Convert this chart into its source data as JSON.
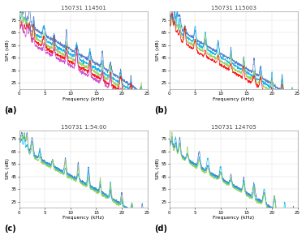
{
  "titles": [
    "150731 114501",
    "150731 115003",
    "150731 1:54:00",
    "150731 124705"
  ],
  "subplot_labels": [
    "(a)",
    "(b)",
    "(c)",
    "(d)"
  ],
  "xlabel": "Frequency (kHz)",
  "ylabel": "SPL (dB)",
  "xlim": [
    0,
    25
  ],
  "ylim": [
    20,
    82
  ],
  "yticks": [
    25,
    35,
    45,
    55,
    65,
    75
  ],
  "xticks": [
    0,
    5,
    10,
    15,
    20,
    25
  ],
  "colors_ab": [
    "#4472c4",
    "#00b0f0",
    "#92d050",
    "#ff0000",
    "#cc44cc"
  ],
  "colors_cd": [
    "#4472c4",
    "#00b0f0",
    "#92d050"
  ],
  "line_width": 0.5,
  "grid_color": "#d0d0d0",
  "grid_alpha": 0.8,
  "bg_color": "#ffffff",
  "title_fontsize": 5.0,
  "label_fontsize": 4.5,
  "tick_fontsize": 4.0,
  "subplot_label_fontsize": 7
}
